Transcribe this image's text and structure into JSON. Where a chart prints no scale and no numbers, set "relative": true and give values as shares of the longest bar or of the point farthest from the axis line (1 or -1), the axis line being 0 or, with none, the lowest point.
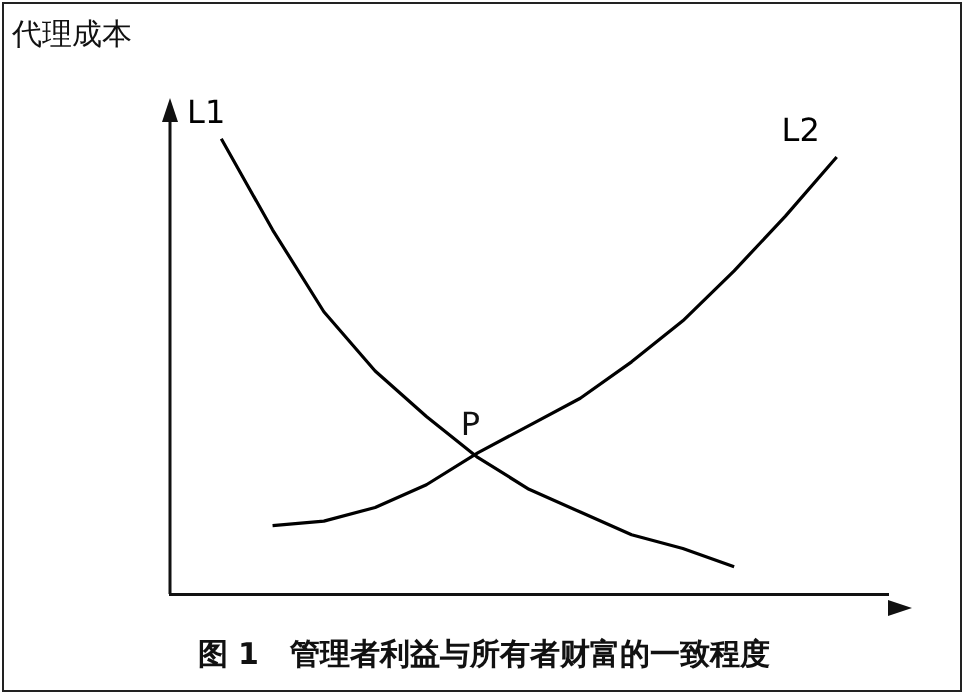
{
  "chart_data": {
    "type": "line",
    "relative": true,
    "title": "图 1   管理者利益与所有者财富的一致程度",
    "ylabel": "代理成本",
    "tick_labels": false,
    "grid": false,
    "marker": "none",
    "line_style": "solid",
    "categories": [
      null,
      null,
      null,
      null,
      null,
      null,
      null,
      null,
      null,
      null,
      null,
      null,
      null,
      null,
      null
    ],
    "series": [
      {
        "name": "L1",
        "color": "#000000",
        "values": [
          null,
          1.0,
          0.8,
          0.62,
          0.49,
          0.39,
          0.3,
          0.23,
          0.18,
          0.13,
          0.1,
          0.06,
          null,
          null,
          null
        ]
      },
      {
        "name": "L2",
        "color": "#000000",
        "values": [
          null,
          null,
          0.15,
          0.16,
          0.19,
          0.24,
          0.31,
          0.37,
          0.43,
          0.51,
          0.6,
          0.71,
          0.83,
          0.96,
          null
        ]
      }
    ],
    "annotations": [
      "P"
    ]
  }
}
